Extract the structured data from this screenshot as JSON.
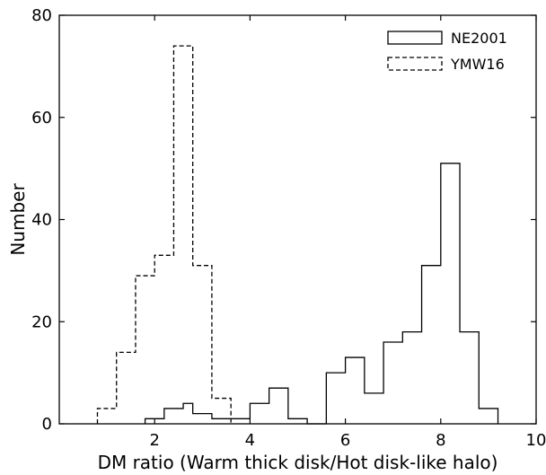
{
  "chart_data": {
    "type": "histogram",
    "xlabel": "DM ratio (Warm thick disk/Hot disk-like halo)",
    "ylabel": "Number",
    "xlim": [
      0,
      10
    ],
    "ylim": [
      0,
      80
    ],
    "x_ticks": [
      2,
      4,
      6,
      8,
      10
    ],
    "y_ticks": [
      0,
      20,
      40,
      60,
      80
    ],
    "x_tick_labels": [
      "2",
      "4",
      "6",
      "8",
      "10"
    ],
    "y_tick_labels": [
      "0",
      "20",
      "40",
      "60",
      "80"
    ],
    "grid": false,
    "legend_position": "top-right",
    "series": [
      {
        "name": "NE2001",
        "line_style": "solid",
        "edges": [
          1.8,
          2.2,
          2.6,
          2.8,
          3.2,
          3.6,
          4.0,
          4.4,
          4.8,
          5.2,
          5.6,
          6.0,
          6.4,
          6.8,
          7.2,
          7.6,
          8.0,
          8.4,
          8.8,
          9.2
        ],
        "counts": [
          1,
          3,
          4,
          2,
          1,
          1,
          4,
          7,
          1,
          0,
          10,
          13,
          6,
          16,
          18,
          31,
          51,
          18,
          3
        ]
      },
      {
        "name": "YMW16",
        "line_style": "dashed",
        "edges": [
          0.8,
          1.2,
          1.6,
          2.0,
          2.4,
          2.8,
          3.2,
          3.6
        ],
        "counts": [
          3,
          14,
          29,
          33,
          74,
          31,
          5
        ]
      }
    ]
  }
}
